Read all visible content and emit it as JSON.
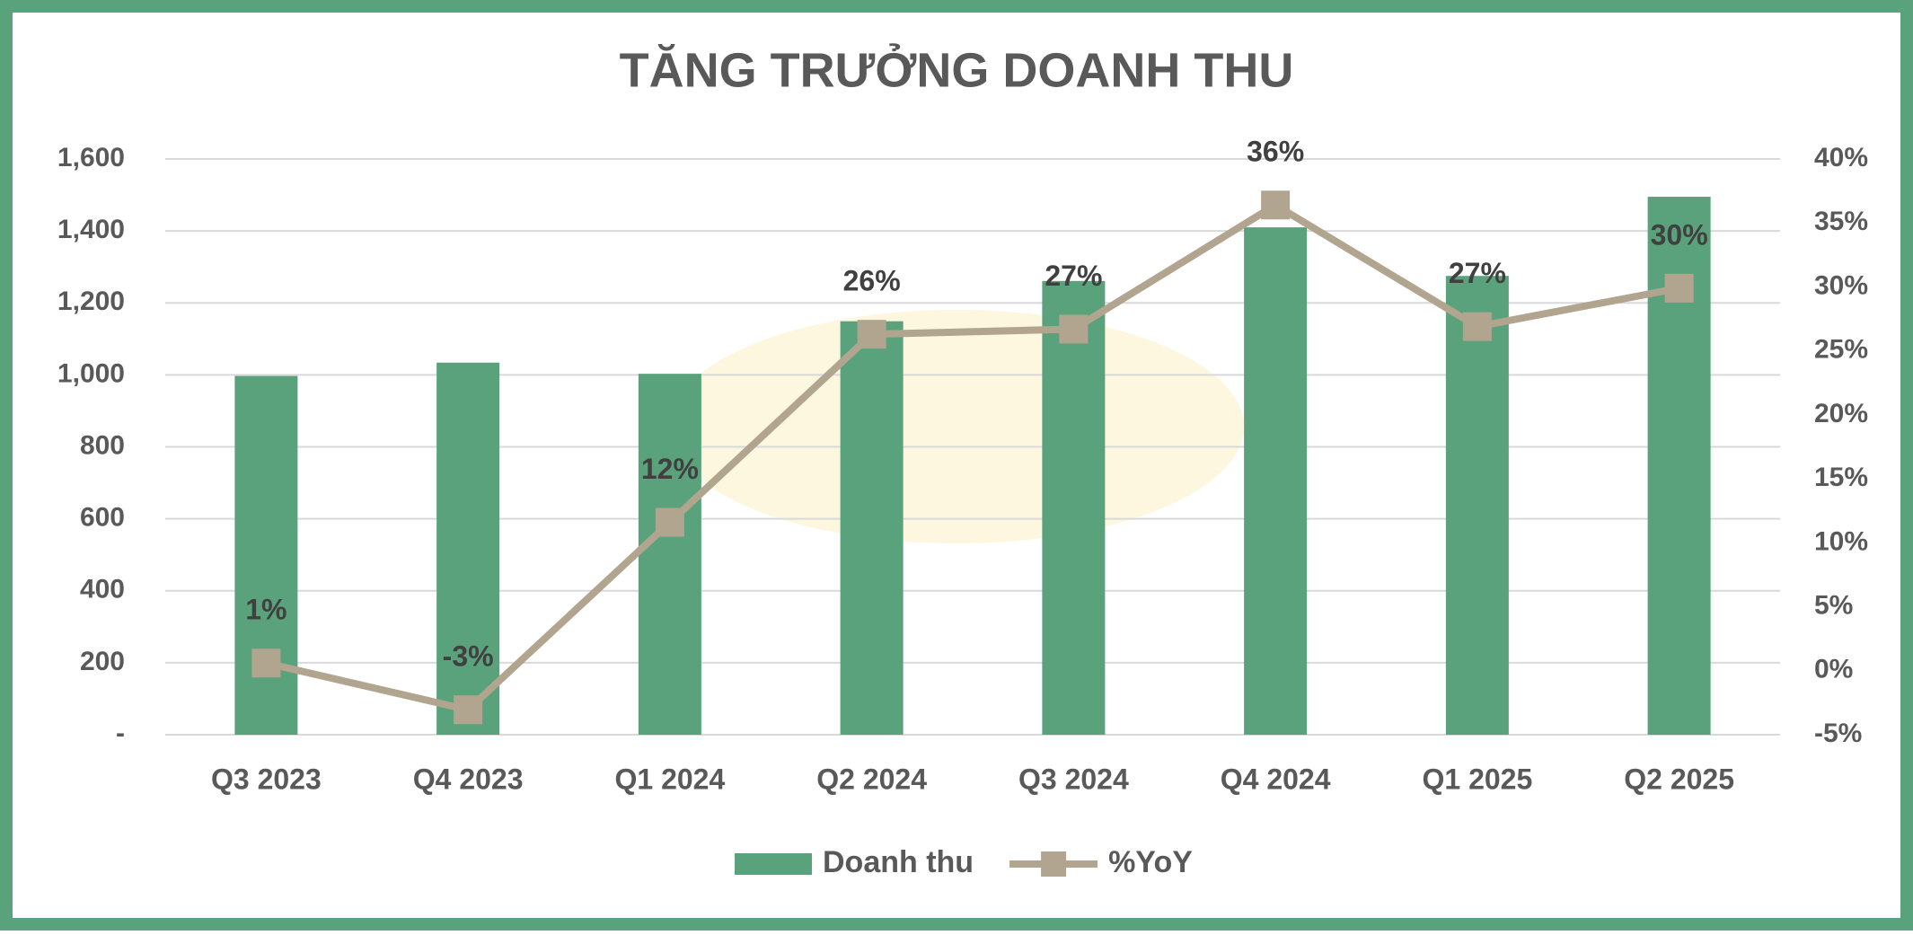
{
  "chart_data": {
    "type": "bar+line",
    "title": "TĂNG TRƯỞNG DOANH THU",
    "categories": [
      "Q3 2023",
      "Q4 2023",
      "Q1 2024",
      "Q2 2024",
      "Q3 2024",
      "Q4 2024",
      "Q1 2025",
      "Q2 2025"
    ],
    "series": [
      {
        "name": "Doanh thu",
        "type": "bar",
        "color": "#5aa27c",
        "values": [
          997,
          1034,
          1003,
          1149,
          1261,
          1410,
          1275,
          1495
        ]
      },
      {
        "name": "%YoY",
        "type": "line",
        "axis": "y2",
        "color": "#b1a58f",
        "values": [
          0.6,
          -3.05,
          11.6,
          26.3,
          26.7,
          36.4,
          26.9,
          29.9
        ],
        "value_labels": [
          "1%",
          "-3%",
          "12%",
          "26%",
          "27%",
          "36%",
          "27%",
          "30%"
        ]
      }
    ],
    "ylim": [
      0,
      1600
    ],
    "yticks": [
      {
        "value": 0,
        "label": "-"
      },
      200,
      400,
      600,
      800,
      {
        "value": 1000,
        "label": "1,000"
      },
      {
        "value": 1200,
        "label": "1,200"
      },
      {
        "value": 1400,
        "label": "1,400"
      },
      {
        "value": 1600,
        "label": "1,600"
      }
    ],
    "y2lim": [
      -5,
      40
    ],
    "y2ticks": [
      {
        "value": -5,
        "label": "-5%"
      },
      {
        "value": 0,
        "label": "0%"
      },
      {
        "value": 5,
        "label": "5%"
      },
      {
        "value": 10,
        "label": "10%"
      },
      {
        "value": 15,
        "label": "15%"
      },
      {
        "value": 20,
        "label": "20%"
      },
      {
        "value": 25,
        "label": "25%"
      },
      {
        "value": 30,
        "label": "30%"
      },
      {
        "value": 35,
        "label": "35%"
      },
      {
        "value": 40,
        "label": "40%"
      }
    ],
    "grid": true,
    "legend": "bottom"
  }
}
